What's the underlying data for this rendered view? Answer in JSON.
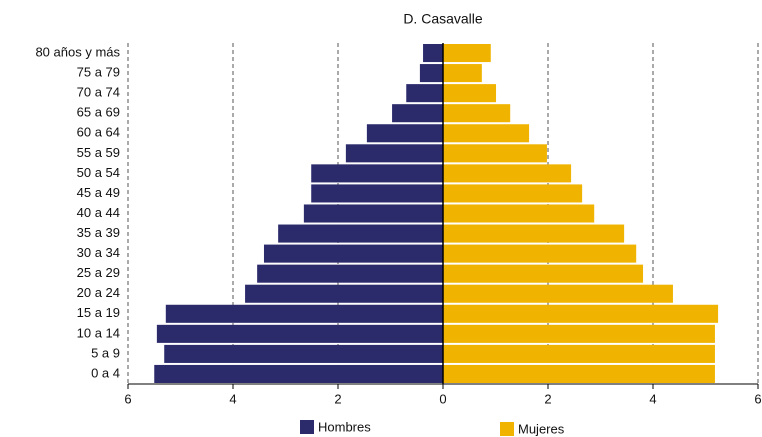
{
  "chart_data": {
    "type": "pyramid",
    "title": "D. Casavalle",
    "categories": [
      "80 años y más",
      "75 a 79",
      "70 a 74",
      "65 a 69",
      "60 a 64",
      "55 a 59",
      "50 a 54",
      "45 a 49",
      "40 a 44",
      "35 a 39",
      "30 a 34",
      "25 a 29",
      "20 a 24",
      "15 a 19",
      "10 a 14",
      "5 a 9",
      "0 a 4"
    ],
    "series": [
      {
        "name": "Hombres",
        "color": "#2b2a6b",
        "values": [
          -0.38,
          -0.44,
          -0.7,
          -0.97,
          -1.45,
          -1.85,
          -2.51,
          -2.51,
          -2.65,
          -3.14,
          -3.41,
          -3.54,
          -3.77,
          -5.28,
          -5.45,
          -5.31,
          -5.5
        ]
      },
      {
        "name": "Mujeres",
        "color": "#f0b400",
        "values": [
          0.91,
          0.74,
          1.01,
          1.28,
          1.64,
          1.98,
          2.44,
          2.65,
          2.88,
          3.45,
          3.68,
          3.81,
          4.38,
          5.24,
          5.18,
          5.18,
          5.18
        ]
      }
    ],
    "xlim": [
      -6,
      6
    ],
    "xticks": [
      {
        "value": -6,
        "label": "6"
      },
      {
        "value": -4,
        "label": "4"
      },
      {
        "value": -2,
        "label": "2"
      },
      0,
      2,
      4,
      6
    ],
    "grid": true
  }
}
